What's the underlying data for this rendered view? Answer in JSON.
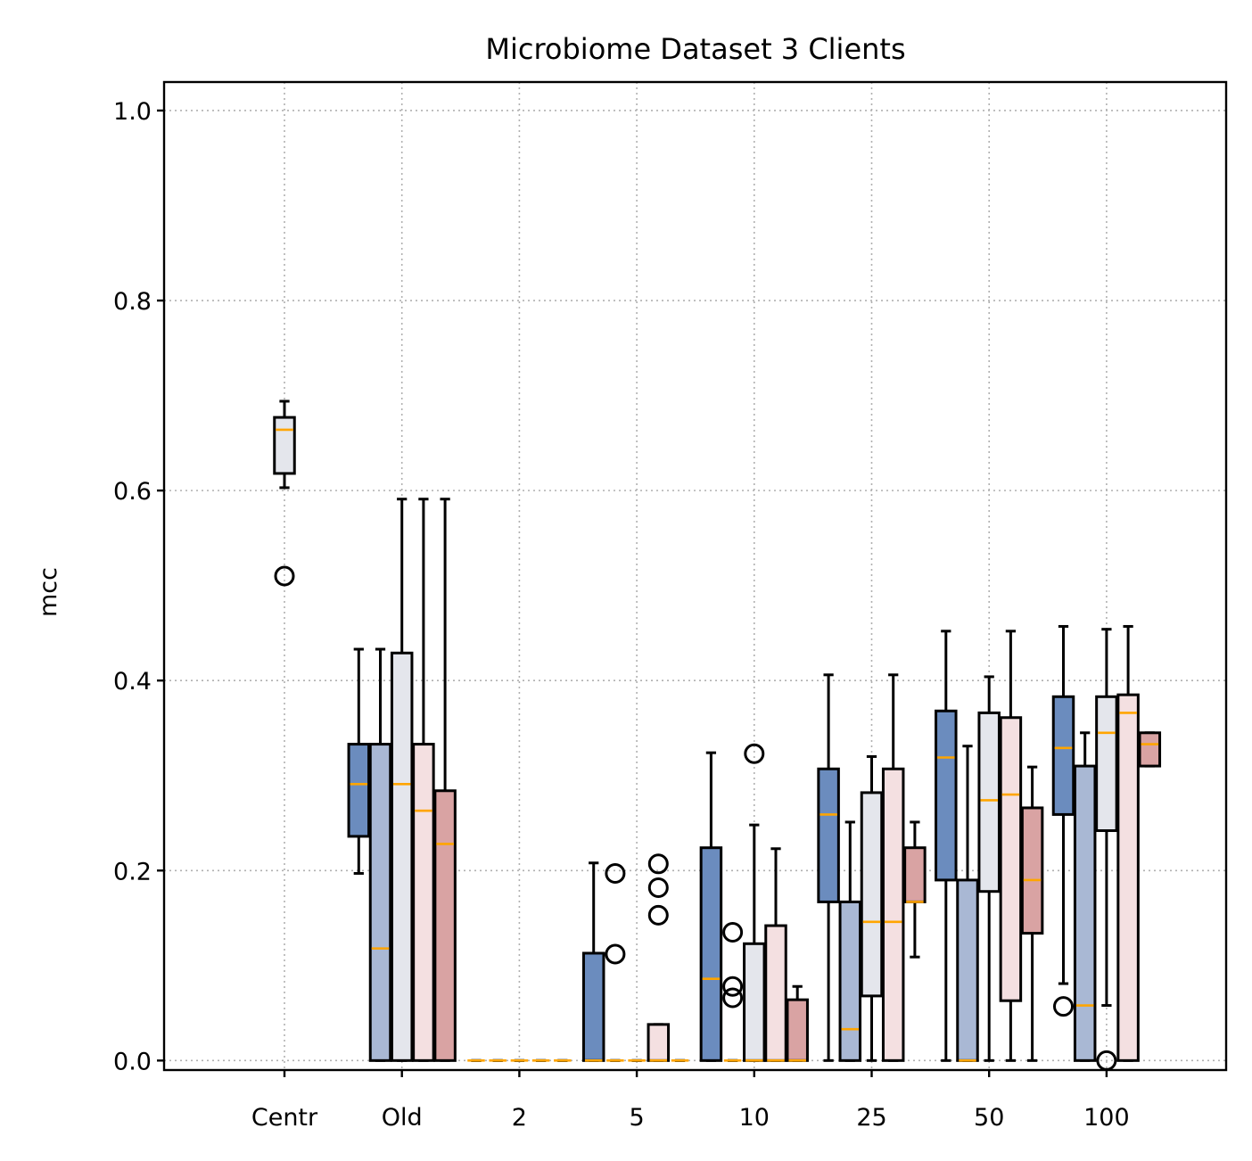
{
  "chart_data": {
    "type": "box",
    "title": "Microbiome Dataset 3 Clients",
    "xlabel": "",
    "ylabel": "mcc",
    "ylim": [
      -0.01,
      1.03
    ],
    "yticks": [
      "0.0",
      "0.2",
      "0.4",
      "0.6",
      "0.8",
      "1.0"
    ],
    "grid": true,
    "categories": [
      "Centr",
      "Old",
      "2",
      "5",
      "10",
      "25",
      "50",
      "100"
    ],
    "palette": [
      "#6b8cbe",
      "#a9b8d4",
      "#e4e6ec",
      "#f4e0e1",
      "#d9a3a3"
    ],
    "boxes": [
      {
        "cat": 0,
        "color": "#e4e6ec",
        "q1": 0.618,
        "median": 0.664,
        "q3": 0.677,
        "whislo": 0.603,
        "whishi": 0.694,
        "fliers": [
          0.51
        ]
      },
      {
        "cat": 1,
        "color": "#6b8cbe",
        "q1": 0.236,
        "median": 0.291,
        "q3": 0.333,
        "whislo": 0.197,
        "whishi": 0.433,
        "fliers": []
      },
      {
        "cat": 1,
        "color": "#a9b8d4",
        "q1": 0.0,
        "median": 0.118,
        "q3": 0.333,
        "whislo": 0.0,
        "whishi": 0.433,
        "fliers": []
      },
      {
        "cat": 1,
        "color": "#e4e6ec",
        "q1": 0.0,
        "median": 0.291,
        "q3": 0.429,
        "whislo": 0.0,
        "whishi": 0.591,
        "fliers": []
      },
      {
        "cat": 1,
        "color": "#f4e0e1",
        "q1": 0.0,
        "median": 0.263,
        "q3": 0.333,
        "whislo": 0.0,
        "whishi": 0.591,
        "fliers": []
      },
      {
        "cat": 1,
        "color": "#d9a3a3",
        "q1": 0.0,
        "median": 0.228,
        "q3": 0.284,
        "whislo": 0.0,
        "whishi": 0.591,
        "fliers": []
      },
      {
        "cat": 2,
        "color": "#6b8cbe",
        "q1": 0.0,
        "median": 0.0,
        "q3": 0.0,
        "whislo": 0.0,
        "whishi": 0.0,
        "fliers": []
      },
      {
        "cat": 2,
        "color": "#a9b8d4",
        "q1": 0.0,
        "median": 0.0,
        "q3": 0.0,
        "whislo": 0.0,
        "whishi": 0.0,
        "fliers": []
      },
      {
        "cat": 2,
        "color": "#e4e6ec",
        "q1": 0.0,
        "median": 0.0,
        "q3": 0.0,
        "whislo": 0.0,
        "whishi": 0.0,
        "fliers": []
      },
      {
        "cat": 2,
        "color": "#f4e0e1",
        "q1": 0.0,
        "median": 0.0,
        "q3": 0.0,
        "whislo": 0.0,
        "whishi": 0.0,
        "fliers": []
      },
      {
        "cat": 2,
        "color": "#d9a3a3",
        "q1": 0.0,
        "median": 0.0,
        "q3": 0.0,
        "whislo": 0.0,
        "whishi": 0.0,
        "fliers": []
      },
      {
        "cat": 3,
        "color": "#6b8cbe",
        "q1": 0.0,
        "median": 0.0,
        "q3": 0.113,
        "whislo": 0.0,
        "whishi": 0.208,
        "fliers": []
      },
      {
        "cat": 3,
        "color": "#a9b8d4",
        "q1": 0.0,
        "median": 0.0,
        "q3": 0.0,
        "whislo": 0.0,
        "whishi": 0.0,
        "fliers": [
          0.112,
          0.197
        ]
      },
      {
        "cat": 3,
        "color": "#e4e6ec",
        "q1": 0.0,
        "median": 0.0,
        "q3": 0.0,
        "whislo": 0.0,
        "whishi": 0.0,
        "fliers": []
      },
      {
        "cat": 3,
        "color": "#f4e0e1",
        "q1": 0.0,
        "median": 0.0,
        "q3": 0.038,
        "whislo": 0.0,
        "whishi": 0.038,
        "fliers": [
          0.153,
          0.182,
          0.207
        ]
      },
      {
        "cat": 3,
        "color": "#d9a3a3",
        "q1": 0.0,
        "median": 0.0,
        "q3": 0.0,
        "whislo": 0.0,
        "whishi": 0.0,
        "fliers": []
      },
      {
        "cat": 4,
        "color": "#6b8cbe",
        "q1": 0.0,
        "median": 0.086,
        "q3": 0.224,
        "whislo": 0.0,
        "whishi": 0.324,
        "fliers": []
      },
      {
        "cat": 4,
        "color": "#a9b8d4",
        "q1": 0.0,
        "median": 0.0,
        "q3": 0.0,
        "whislo": 0.0,
        "whishi": 0.0,
        "fliers": [
          0.066,
          0.078,
          0.135
        ]
      },
      {
        "cat": 4,
        "color": "#e4e6ec",
        "q1": 0.0,
        "median": 0.0,
        "q3": 0.123,
        "whislo": 0.0,
        "whishi": 0.248,
        "fliers": [
          0.323
        ]
      },
      {
        "cat": 4,
        "color": "#f4e0e1",
        "q1": 0.0,
        "median": 0.0,
        "q3": 0.142,
        "whislo": 0.0,
        "whishi": 0.223,
        "fliers": []
      },
      {
        "cat": 4,
        "color": "#d9a3a3",
        "q1": 0.0,
        "median": 0.0,
        "q3": 0.064,
        "whislo": 0.0,
        "whishi": 0.078,
        "fliers": []
      },
      {
        "cat": 5,
        "color": "#6b8cbe",
        "q1": 0.167,
        "median": 0.259,
        "q3": 0.307,
        "whislo": 0.0,
        "whishi": 0.406,
        "fliers": []
      },
      {
        "cat": 5,
        "color": "#a9b8d4",
        "q1": 0.0,
        "median": 0.033,
        "q3": 0.167,
        "whislo": 0.0,
        "whishi": 0.251,
        "fliers": []
      },
      {
        "cat": 5,
        "color": "#e4e6ec",
        "q1": 0.068,
        "median": 0.146,
        "q3": 0.282,
        "whislo": 0.0,
        "whishi": 0.32,
        "fliers": []
      },
      {
        "cat": 5,
        "color": "#f4e0e1",
        "q1": 0.0,
        "median": 0.146,
        "q3": 0.307,
        "whislo": 0.0,
        "whishi": 0.406,
        "fliers": []
      },
      {
        "cat": 5,
        "color": "#d9a3a3",
        "q1": 0.167,
        "median": 0.167,
        "q3": 0.224,
        "whislo": 0.109,
        "whishi": 0.251,
        "fliers": []
      },
      {
        "cat": 6,
        "color": "#6b8cbe",
        "q1": 0.19,
        "median": 0.319,
        "q3": 0.368,
        "whislo": 0.0,
        "whishi": 0.452,
        "fliers": []
      },
      {
        "cat": 6,
        "color": "#a9b8d4",
        "q1": 0.0,
        "median": 0.0,
        "q3": 0.19,
        "whislo": 0.0,
        "whishi": 0.331,
        "fliers": []
      },
      {
        "cat": 6,
        "color": "#e4e6ec",
        "q1": 0.178,
        "median": 0.274,
        "q3": 0.366,
        "whislo": 0.0,
        "whishi": 0.404,
        "fliers": []
      },
      {
        "cat": 6,
        "color": "#f4e0e1",
        "q1": 0.063,
        "median": 0.28,
        "q3": 0.361,
        "whislo": 0.0,
        "whishi": 0.452,
        "fliers": []
      },
      {
        "cat": 6,
        "color": "#d9a3a3",
        "q1": 0.134,
        "median": 0.19,
        "q3": 0.266,
        "whislo": 0.0,
        "whishi": 0.309,
        "fliers": []
      },
      {
        "cat": 7,
        "color": "#6b8cbe",
        "q1": 0.259,
        "median": 0.329,
        "q3": 0.383,
        "whislo": 0.081,
        "whishi": 0.457,
        "fliers": [
          0.057
        ]
      },
      {
        "cat": 7,
        "color": "#a9b8d4",
        "q1": 0.0,
        "median": 0.058,
        "q3": 0.31,
        "whislo": 0.0,
        "whishi": 0.345,
        "fliers": []
      },
      {
        "cat": 7,
        "color": "#e4e6ec",
        "q1": 0.242,
        "median": 0.345,
        "q3": 0.383,
        "whislo": 0.058,
        "whishi": 0.454,
        "fliers": [
          0.0
        ]
      },
      {
        "cat": 7,
        "color": "#f4e0e1",
        "q1": 0.0,
        "median": 0.366,
        "q3": 0.385,
        "whislo": 0.0,
        "whishi": 0.457,
        "fliers": []
      },
      {
        "cat": 7,
        "color": "#d9a3a3",
        "q1": 0.31,
        "median": 0.333,
        "q3": 0.345,
        "whislo": 0.31,
        "whishi": 0.345,
        "fliers": []
      }
    ]
  }
}
